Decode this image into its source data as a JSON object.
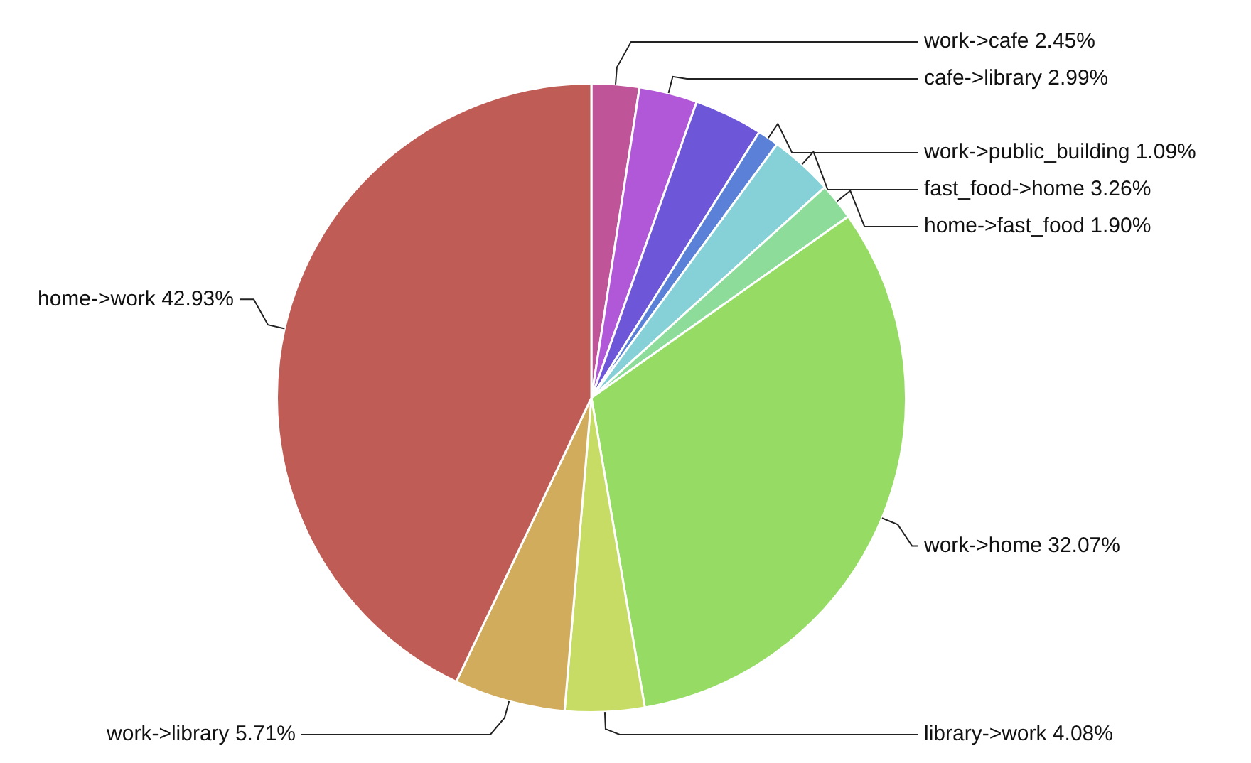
{
  "chart_data": {
    "type": "pie",
    "categories": [
      "work->cafe",
      "cafe->library",
      null,
      "work->public_building",
      "fast_food->home",
      "home->fast_food",
      "work->home",
      "library->work",
      "work->library",
      "home->work"
    ],
    "values": [
      2.45,
      2.99,
      3.52,
      1.09,
      3.26,
      1.9,
      32.07,
      4.08,
      5.71,
      42.93
    ],
    "value_labels": [
      "2.45%",
      "2.99%",
      null,
      "1.09%",
      "3.26%",
      "1.90%",
      "32.07%",
      "4.08%",
      "5.71%",
      "42.93%"
    ],
    "colors": [
      "#bf5598",
      "#b058d8",
      "#6e56d8",
      "#5b80d8",
      "#86d0d8",
      "#8ddc9a",
      "#96dc64",
      "#c6dc64",
      "#d0ac5c",
      "#c05c56"
    ]
  }
}
